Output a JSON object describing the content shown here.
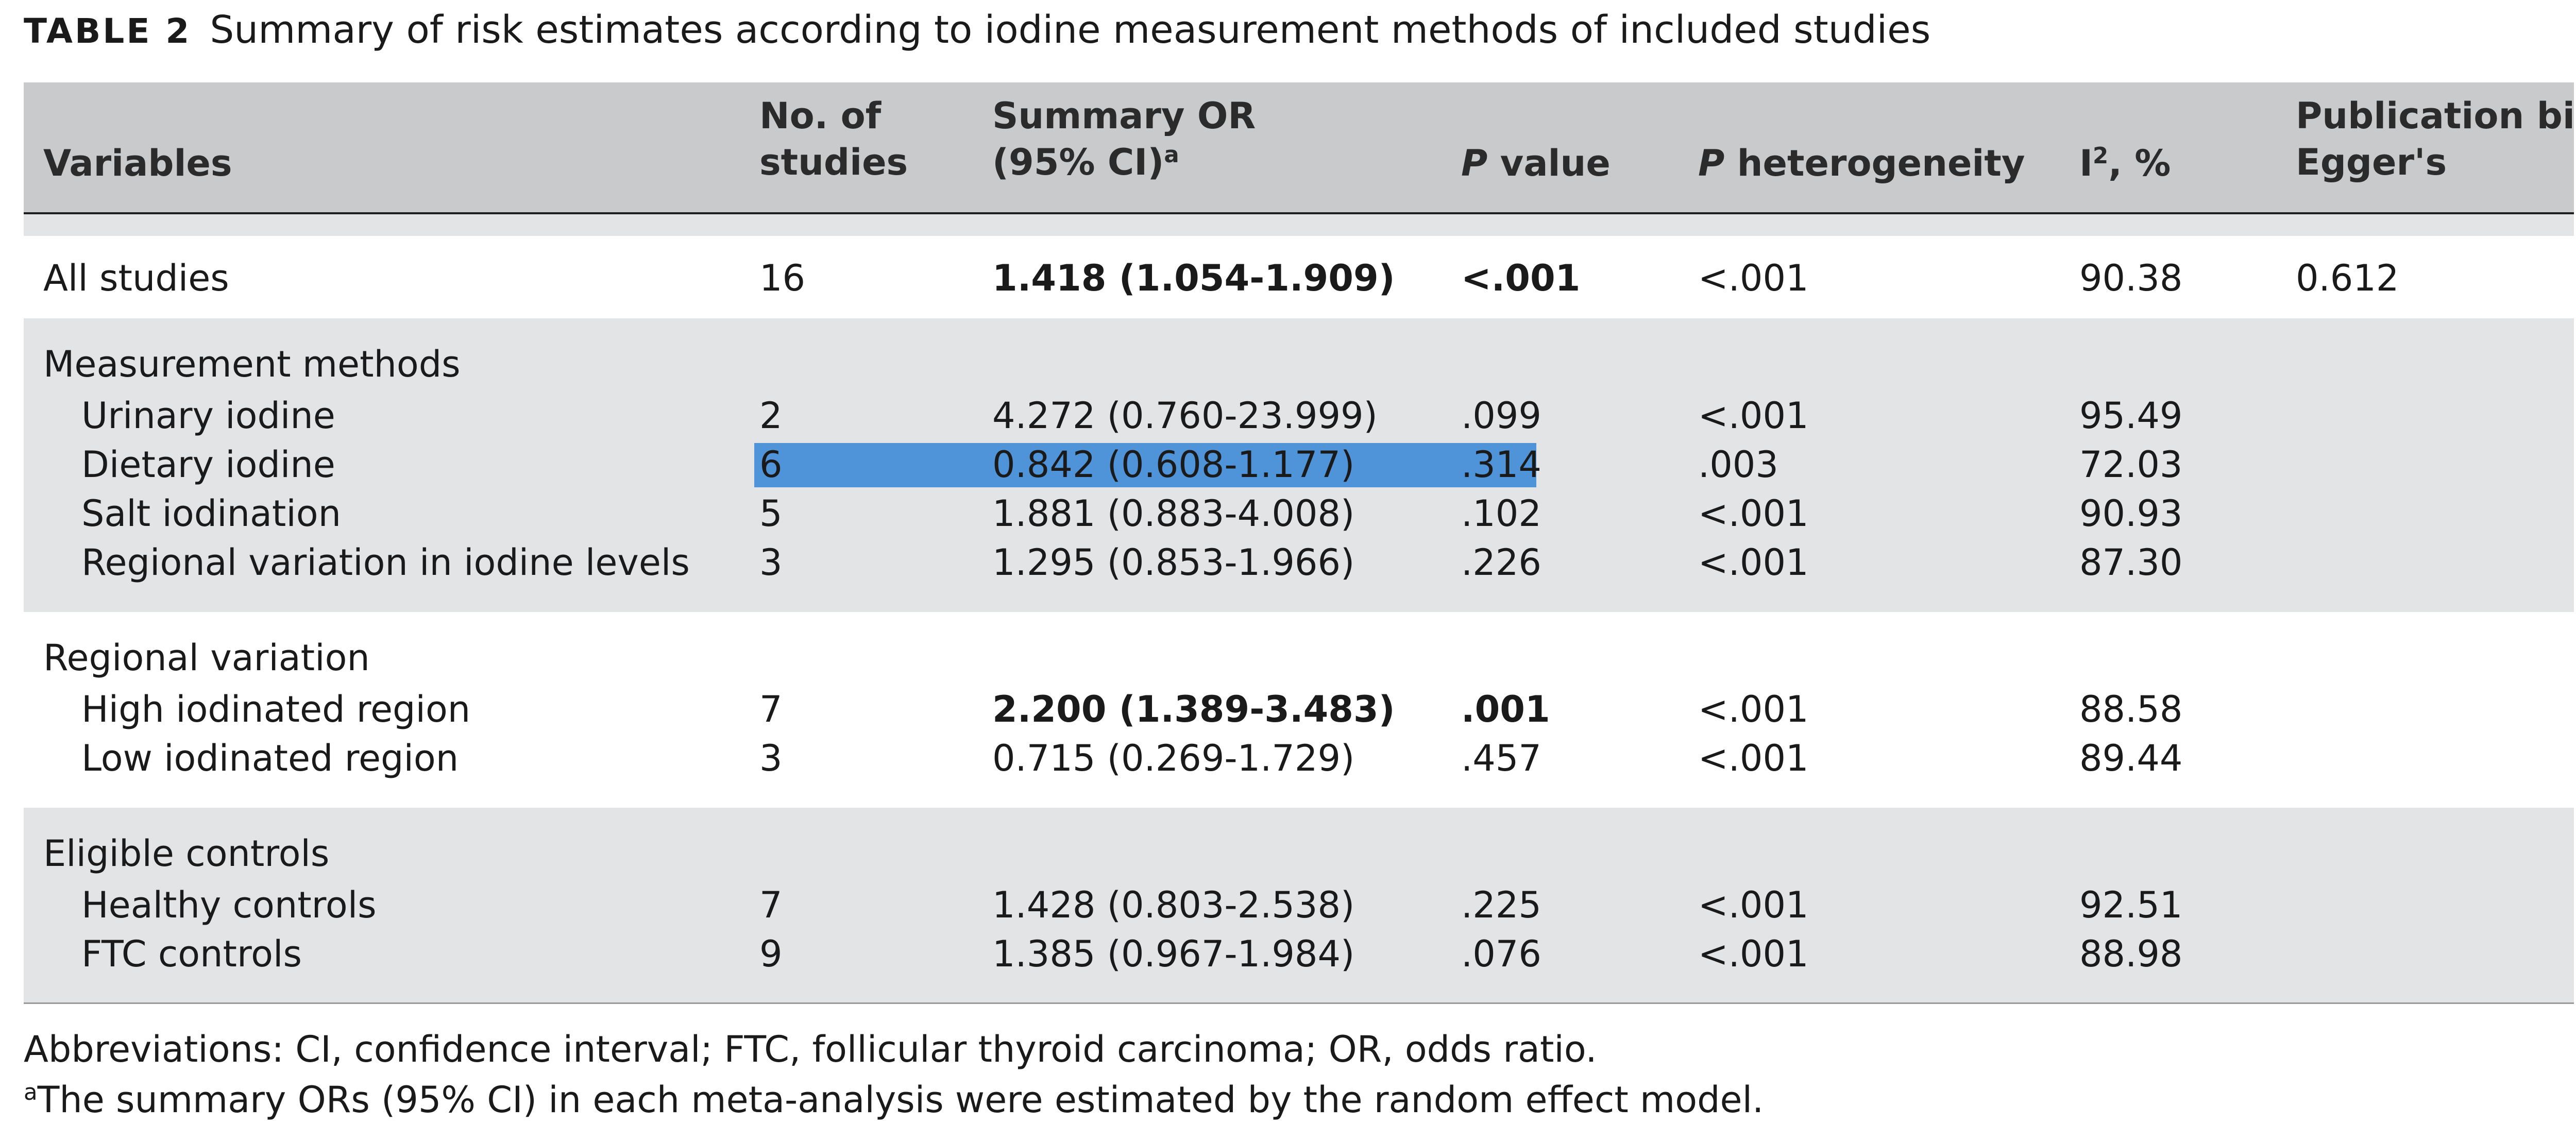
{
  "caption": {
    "label": "TABLE 2",
    "title": "Summary of risk estimates according to iodine measurement methods of included studies"
  },
  "headers": {
    "variables": "Variables",
    "n_studies_1": "No. of",
    "n_studies_2": "studies",
    "or_1": "Summary OR",
    "or_2": "(95% CI)",
    "or_sup": "a",
    "p_italic": "P",
    "p_rest": " value",
    "phet_italic": "P",
    "phet_rest": " heterogeneity",
    "i2_base": "I",
    "i2_sup": "2",
    "i2_rest": ", %",
    "bias_1": "Publication bias",
    "bias_2": "Egger's"
  },
  "rows": {
    "all": {
      "label": "All studies",
      "n": "16",
      "or": "1.418 (1.054-1.909)",
      "p": "<.001",
      "phet": "<.001",
      "i2": "90.38",
      "bias": "0.612"
    },
    "sec_methods": "Measurement methods",
    "urinary": {
      "label": "Urinary iodine",
      "n": "2",
      "or": "4.272 (0.760-23.999)",
      "p": ".099",
      "phet": "<.001",
      "i2": "95.49"
    },
    "dietary": {
      "label": "Dietary iodine",
      "n": "6",
      "or": "0.842 (0.608-1.177)",
      "p": ".314",
      "phet": ".003",
      "i2": "72.03"
    },
    "salt": {
      "label": "Salt iodination",
      "n": "5",
      "or": "1.881 (0.883-4.008)",
      "p": ".102",
      "phet": "<.001",
      "i2": "90.93"
    },
    "regional_levels": {
      "label": "Regional variation in iodine levels",
      "n": "3",
      "or": "1.295 (0.853-1.966)",
      "p": ".226",
      "phet": "<.001",
      "i2": "87.30"
    },
    "sec_regional": "Regional variation",
    "high": {
      "label": "High iodinated region",
      "n": "7",
      "or": "2.200 (1.389-3.483)",
      "p": ".001",
      "phet": "<.001",
      "i2": "88.58"
    },
    "low": {
      "label": "Low iodinated region",
      "n": "3",
      "or": "0.715 (0.269-1.729)",
      "p": ".457",
      "phet": "<.001",
      "i2": "89.44"
    },
    "sec_controls": "Eligible controls",
    "healthy": {
      "label": "Healthy controls",
      "n": "7",
      "or": "1.428 (0.803-2.538)",
      "p": ".225",
      "phet": "<.001",
      "i2": "92.51"
    },
    "ftc": {
      "label": "FTC controls",
      "n": "9",
      "or": "1.385 (0.967-1.984)",
      "p": ".076",
      "phet": "<.001",
      "i2": "88.98"
    }
  },
  "footnotes": {
    "abbreviations": "Abbreviations: CI, confidence interval; FTC, follicular thyroid carcinoma; OR, odds ratio.",
    "a_sup": "a",
    "a_text": "The summary ORs (95% CI) in each meta-analysis were estimated by the random effect model."
  },
  "colors": {
    "header_band": "#c9cacc",
    "section_band": "#e3e4e6",
    "selection": "#4f93d8"
  }
}
